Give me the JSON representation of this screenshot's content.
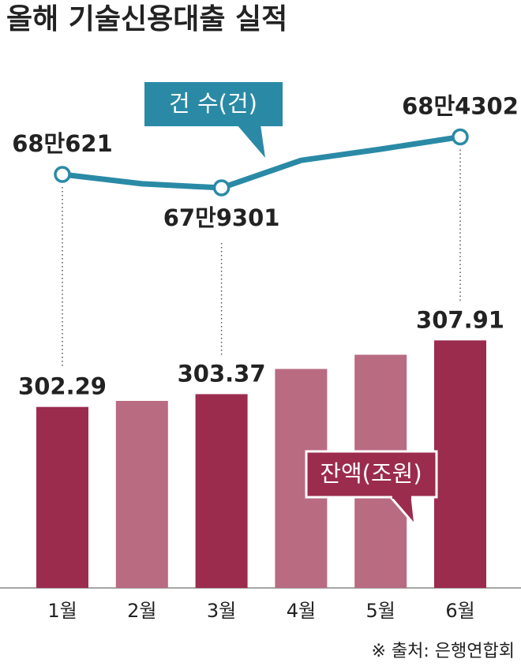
{
  "chart_data": {
    "type": "bar-line",
    "title": "올해 기술신용대출 실적",
    "source": "※ 출처: 은행연합회",
    "categories": [
      "1월",
      "2월",
      "3월",
      "4월",
      "5월",
      "6월"
    ],
    "series": [
      {
        "name": "잔액(조원)",
        "type": "bar",
        "color": "#9b2c4e",
        "colors": [
          "#9b2c4e",
          "#b96b82",
          "#9b2c4e",
          "#b96b82",
          "#b96b82",
          "#9b2c4e"
        ],
        "values": [
          302.29,
          302.8,
          303.37,
          305.5,
          306.7,
          307.91
        ],
        "value_labels": [
          "302.29",
          null,
          "303.37",
          null,
          null,
          "307.91"
        ]
      },
      {
        "name": "건 수(건)",
        "type": "line",
        "axis": "y2",
        "color": "#2a8aa6",
        "values": [
          680621,
          679700,
          679301,
          682000,
          683100,
          684302
        ],
        "value_labels": [
          "68만621",
          null,
          "67만9301",
          null,
          null,
          "68만4302"
        ]
      }
    ],
    "ylim": [
      287,
      330
    ],
    "y2lim": [
      640000,
      690000
    ]
  }
}
